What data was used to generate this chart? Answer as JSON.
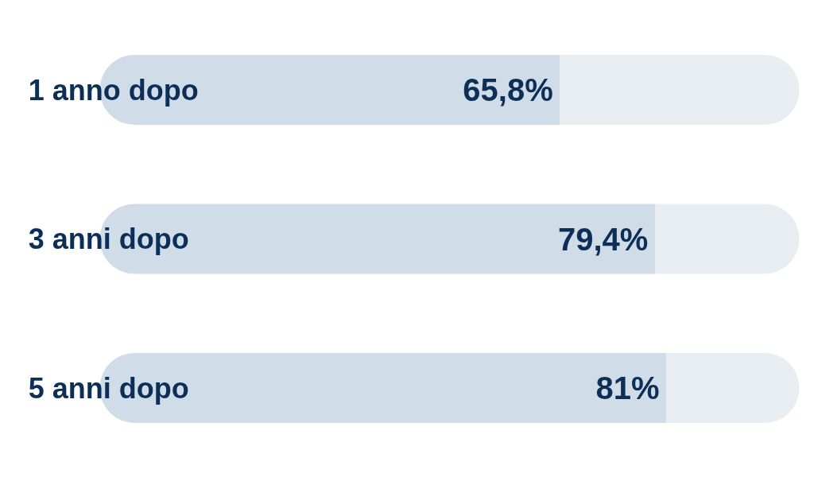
{
  "chart_data": {
    "type": "bar",
    "orientation": "horizontal",
    "stacked": true,
    "categories": [
      "1 anno dopo",
      "3 anni dopo",
      "5 anni dopo"
    ],
    "series": [
      {
        "color": "#d0dde9",
        "values": [
          65.8,
          79.4,
          81
        ],
        "value_labels": [
          "65,8%",
          "79,4%",
          "81%"
        ]
      },
      {
        "color": "#e8edf2",
        "values": [
          34.2,
          20.6,
          19
        ]
      }
    ],
    "grid": false,
    "tick_labels": false
  }
}
